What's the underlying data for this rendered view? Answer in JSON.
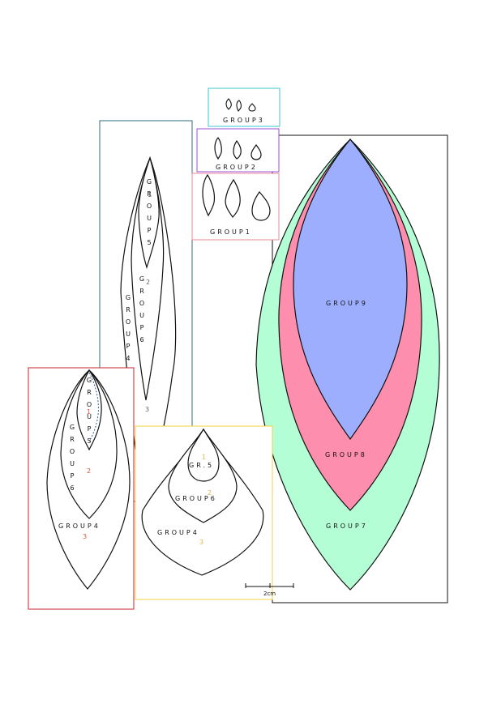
{
  "colors": {
    "box_group3": "#3ec7cf",
    "box_group2": "#9b4fd6",
    "box_group1": "#e8899a",
    "box_tall": "#2f6b78",
    "box_red": "#c8202e",
    "box_yellow": "#f0d24a",
    "box_large": "#111111",
    "text_group3": "#4fc98d",
    "text_group2": "#9b4fd6",
    "text_group1": "#e8899a",
    "num_tall": "#666666",
    "num_red": "#e2553a",
    "num_yellow": "#d8b94a",
    "fill_group9": "#9eaefe",
    "fill_group8": "#fe8eae",
    "fill_group7": "#b4fed6"
  },
  "small_groups": {
    "group3": "GROUP3",
    "group2": "GROUP2",
    "group1": "GROUP1"
  },
  "tall_panel": {
    "group5": "GROUP5",
    "group6": "GROUP6",
    "group4": "GROUP4",
    "num_1": "1",
    "num_2": "2",
    "num_3": "3"
  },
  "red_panel": {
    "group5": "GROUP5",
    "group6": "GROUP6",
    "group4": "GROUP4",
    "num_1": "1",
    "num_2": "2",
    "num_3": "3"
  },
  "yellow_panel": {
    "group5": "GR.5",
    "group6": "GROUP6",
    "group4": "GROUP4",
    "num_1": "1",
    "num_2": "2",
    "num_3": "3"
  },
  "large_panel": {
    "group9": "GROUP9",
    "group8": "GROUP8",
    "group7": "GROUP7"
  },
  "scale": {
    "label": "2cm"
  }
}
